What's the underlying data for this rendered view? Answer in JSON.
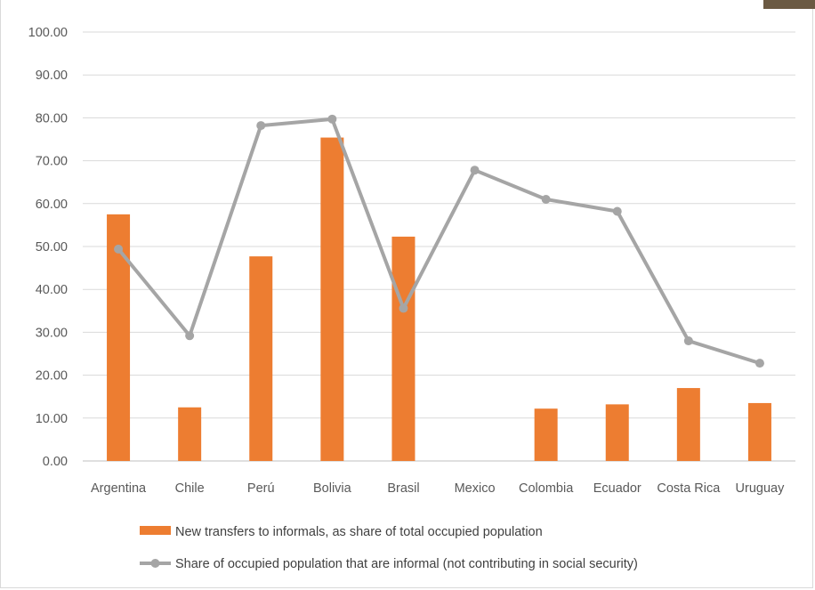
{
  "chart_data": {
    "type": "bar",
    "categories": [
      "Argentina",
      "Chile",
      "Perú",
      "Bolivia",
      "Brasil",
      "Mexico",
      "Colombia",
      "Ecuador",
      "Costa Rica",
      "Uruguay"
    ],
    "series": [
      {
        "name": "New transfers to informals, as share of total occupied population",
        "type": "bar",
        "color": "#ed7d31",
        "values": [
          57.5,
          12.5,
          47.7,
          75.4,
          52.3,
          null,
          12.2,
          13.2,
          17.0,
          13.5
        ]
      },
      {
        "name": "Share of occupied population that are informal (not contributing in social security)",
        "type": "line",
        "color": "#a5a5a5",
        "values": [
          49.4,
          29.2,
          78.2,
          79.7,
          35.6,
          67.8,
          61.0,
          58.2,
          28.0,
          22.8
        ]
      }
    ],
    "ylim": [
      0,
      100
    ],
    "yticks": [
      "0.00",
      "10.00",
      "20.00",
      "30.00",
      "40.00",
      "50.00",
      "60.00",
      "70.00",
      "80.00",
      "90.00",
      "100.00"
    ],
    "grid": true,
    "legend_position": "bottom"
  }
}
